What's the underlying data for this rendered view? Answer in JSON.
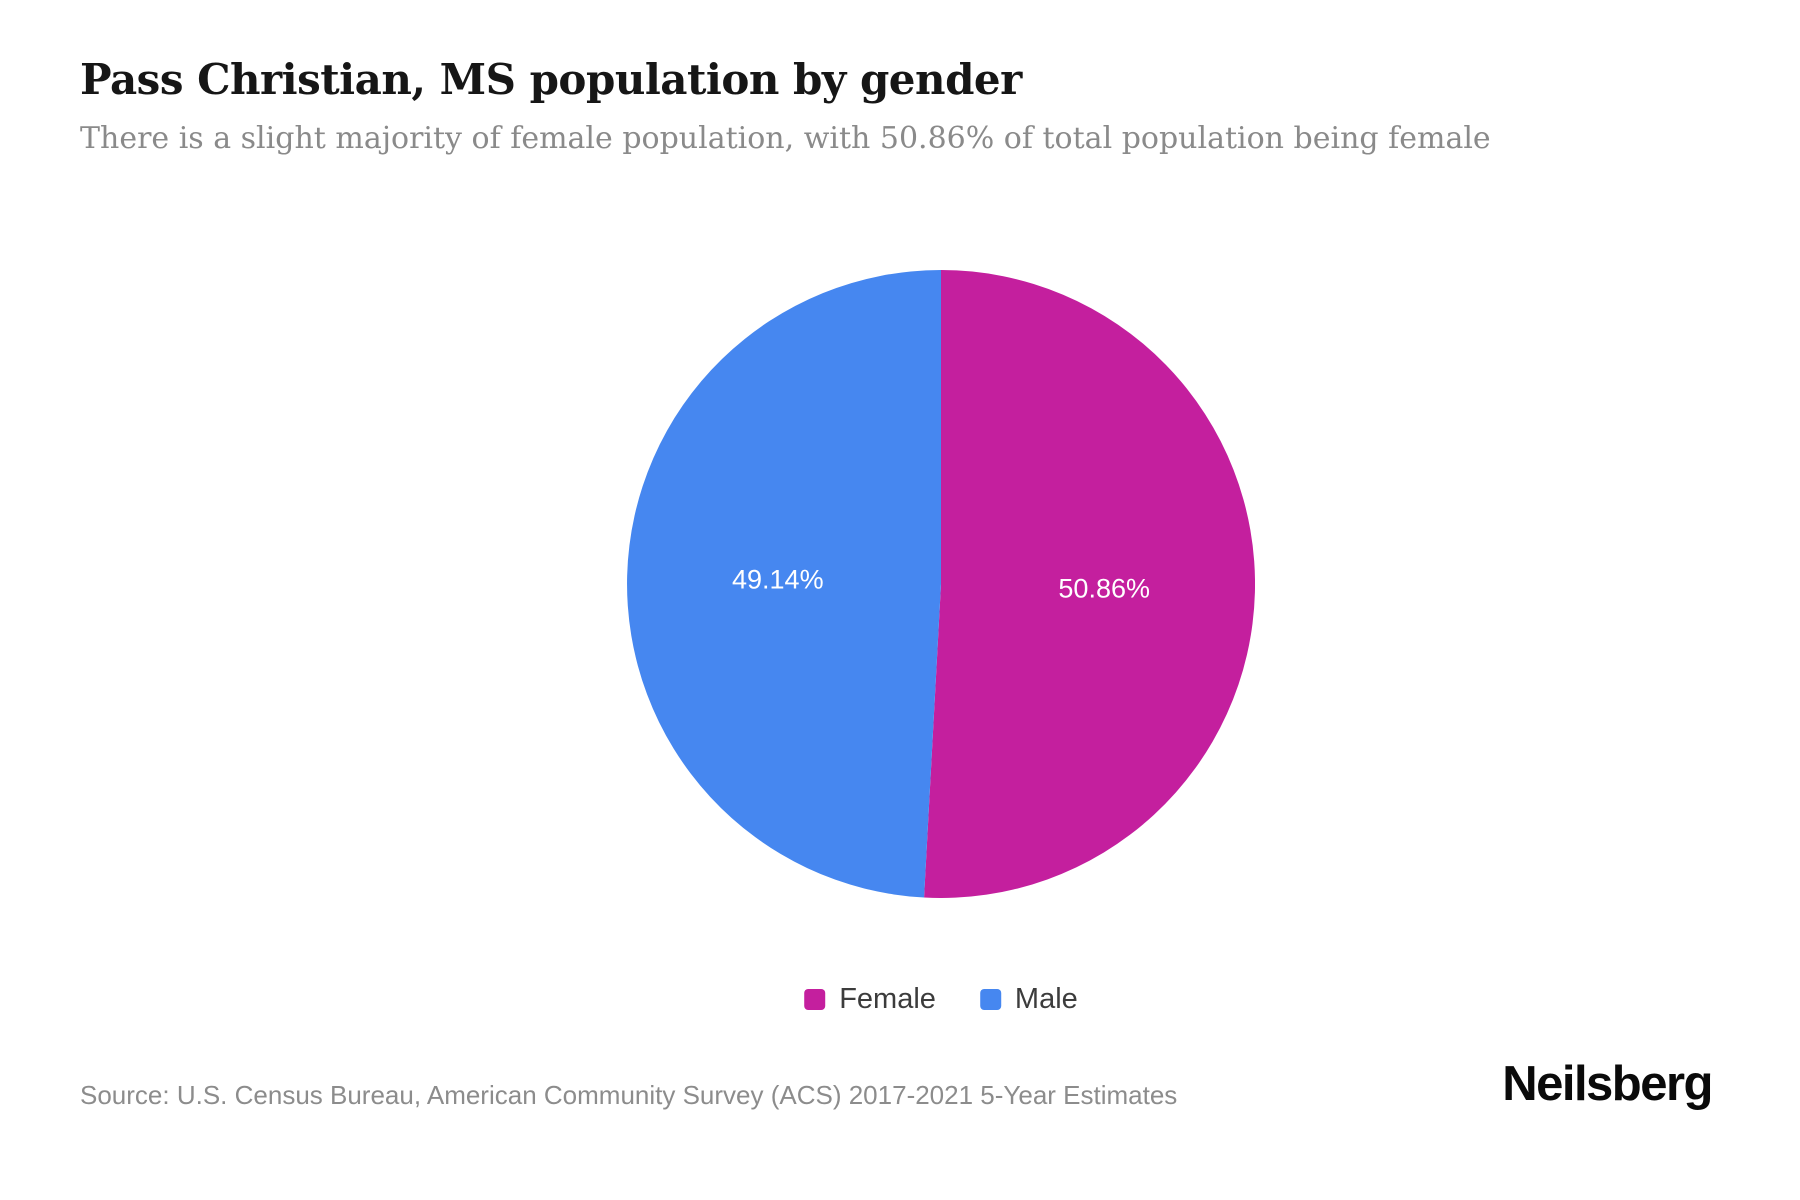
{
  "header": {
    "title": "Pass Christian, MS population by gender",
    "subtitle": "There is a slight majority of female population, with 50.86% of total population being female"
  },
  "chart_data": {
    "type": "pie",
    "title": "Pass Christian, MS population by gender",
    "start_angle_deg": 0,
    "direction": "clockwise",
    "legend_position": "bottom",
    "label_color": "#ffffff",
    "slices": [
      {
        "name": "Female",
        "value": 50.86,
        "label": "50.86%",
        "color": "#c41f9e"
      },
      {
        "name": "Male",
        "value": 49.14,
        "label": "49.14%",
        "color": "#4687f0"
      }
    ]
  },
  "footer": {
    "source": "Source: U.S. Census Bureau, American Community Survey (ACS) 2017-2021 5-Year Estimates",
    "brand": "Neilsberg"
  }
}
